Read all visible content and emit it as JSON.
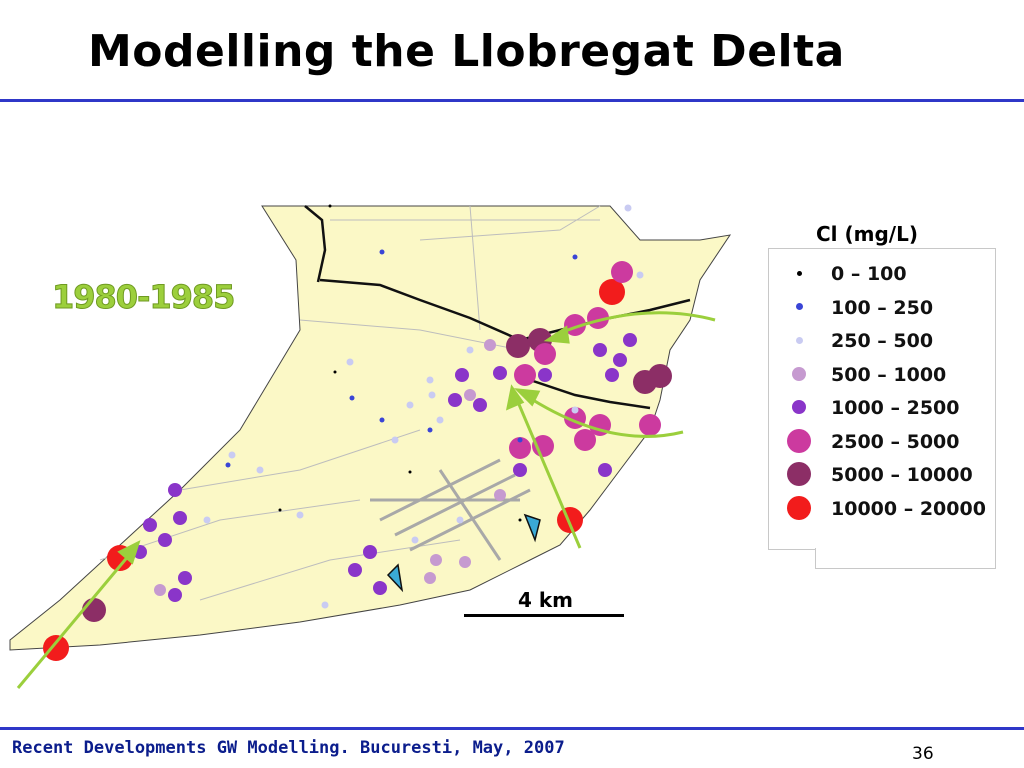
{
  "slide": {
    "title": "Modelling the Llobregat Delta",
    "period": "1980-1985",
    "scale_label": "4 km",
    "footer": "Recent Developments GW Modelling. Bucuresti, May, 2007",
    "page_number": "36"
  },
  "legend": {
    "title": "Cl (mg/L)",
    "items": [
      {
        "label": "0 – 100",
        "color": "#000000",
        "symbol": "tiny-dot"
      },
      {
        "label": "100 – 250",
        "color": "#3a45d6",
        "symbol": "small-dot"
      },
      {
        "label": "250 – 500",
        "color": "#c9cbf2",
        "symbol": "small-dot"
      },
      {
        "label": "500 – 1000",
        "color": "#c69ad0",
        "symbol": "medium-dot"
      },
      {
        "label": "1000 – 2500",
        "color": "#8a35c9",
        "symbol": "medium-dot"
      },
      {
        "label": "2500 – 5000",
        "color": "#cc3a9f",
        "symbol": "large-dot"
      },
      {
        "label": "5000 – 10000",
        "color": "#8c2e66",
        "symbol": "large-dot"
      },
      {
        "label": "10000 – 20000",
        "color": "#f21c1c",
        "symbol": "large-dot"
      }
    ]
  },
  "map": {
    "land_color": "#fbf8c6",
    "arrow_color": "#9bcf3c"
  }
}
